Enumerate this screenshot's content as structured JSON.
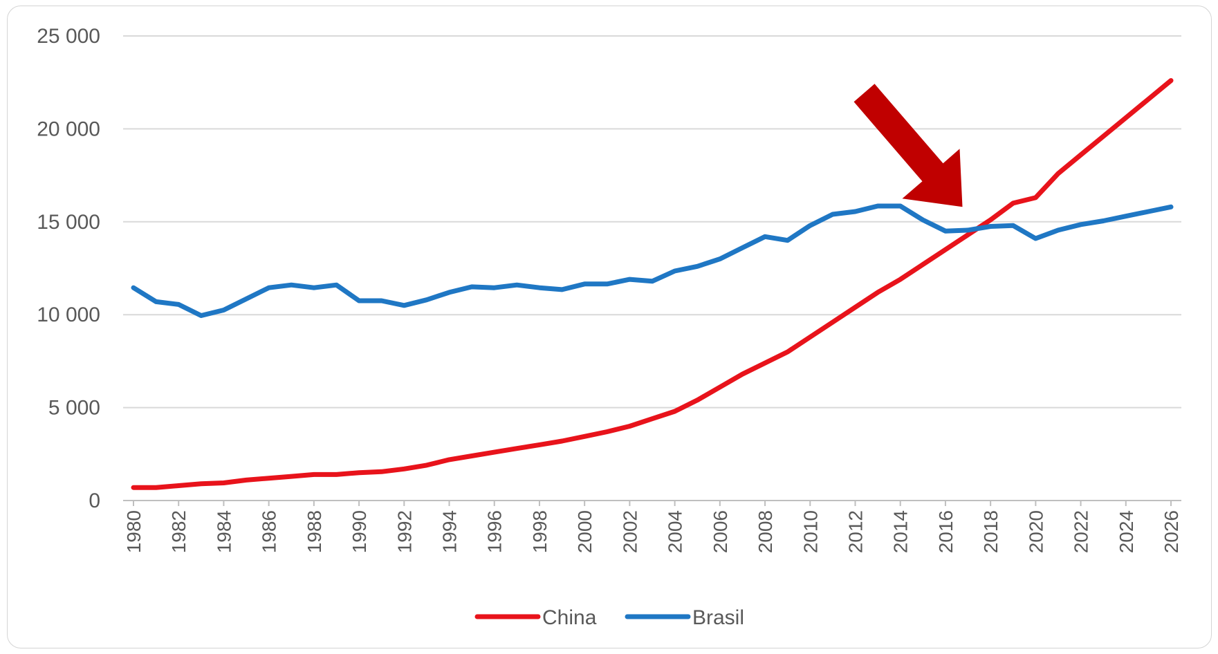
{
  "chart_data": {
    "type": "line",
    "title": "",
    "xlabel": "",
    "ylabel": "",
    "x": [
      1980,
      1981,
      1982,
      1983,
      1984,
      1985,
      1986,
      1987,
      1988,
      1989,
      1990,
      1991,
      1992,
      1993,
      1994,
      1995,
      1996,
      1997,
      1998,
      1999,
      2000,
      2001,
      2002,
      2003,
      2004,
      2005,
      2006,
      2007,
      2008,
      2009,
      2010,
      2011,
      2012,
      2013,
      2014,
      2015,
      2016,
      2017,
      2018,
      2019,
      2020,
      2021,
      2022,
      2023,
      2024,
      2025,
      2026
    ],
    "x_tick_labels": [
      "1980",
      "1982",
      "1984",
      "1986",
      "1988",
      "1990",
      "1992",
      "1994",
      "1996",
      "1998",
      "2000",
      "2002",
      "2004",
      "2006",
      "2008",
      "2010",
      "2012",
      "2014",
      "2016",
      "2018",
      "2020",
      "2022",
      "2024",
      "2026"
    ],
    "y_ticks": [
      0,
      5000,
      10000,
      15000,
      20000,
      25000
    ],
    "y_tick_labels": [
      "0",
      "5 000",
      "10 000",
      "15 000",
      "20 000",
      "25 000"
    ],
    "ylim": [
      0,
      25000
    ],
    "grid": "horizontal",
    "legend_position": "bottom",
    "series": [
      {
        "name": "China",
        "color": "#e8131b",
        "values": [
          700,
          700,
          800,
          900,
          950,
          1100,
          1200,
          1300,
          1400,
          1400,
          1500,
          1550,
          1700,
          1900,
          2200,
          2400,
          2600,
          2800,
          3000,
          3200,
          3450,
          3700,
          4000,
          4400,
          4800,
          5400,
          6100,
          6800,
          7400,
          8000,
          8800,
          9600,
          10400,
          11200,
          11900,
          12700,
          13500,
          14300,
          15100,
          16000,
          16300,
          17600,
          18600,
          19600,
          20600,
          21600,
          22600
        ]
      },
      {
        "name": "Brasil",
        "color": "#1f77c4",
        "values": [
          11450,
          10700,
          10550,
          9950,
          10250,
          10850,
          11450,
          11600,
          11450,
          11600,
          10750,
          10750,
          10500,
          10800,
          11200,
          11500,
          11450,
          11600,
          11450,
          11350,
          11650,
          11650,
          11900,
          11800,
          12350,
          12600,
          13000,
          13600,
          14200,
          14000,
          14800,
          15400,
          15550,
          15850,
          15850,
          15100,
          14500,
          14550,
          14750,
          14800,
          14100,
          14550,
          14850,
          15050,
          15300,
          15550,
          15800
        ]
      }
    ],
    "annotation": {
      "type": "arrow",
      "color": "#c00000",
      "points_to_x": 2017
    }
  }
}
